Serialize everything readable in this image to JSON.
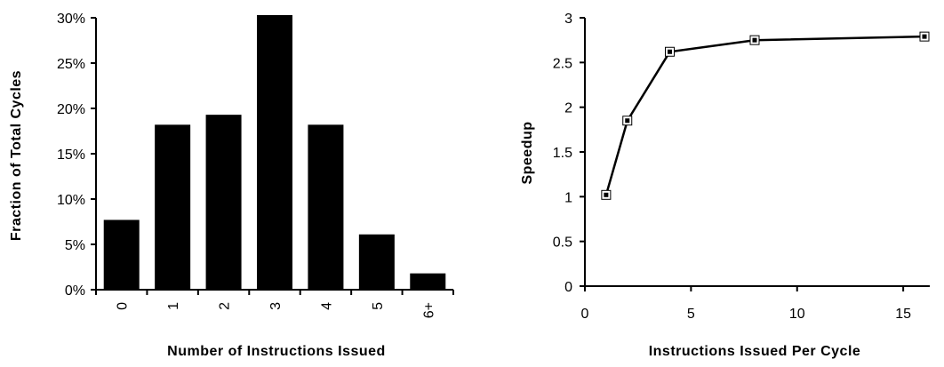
{
  "chart_data": [
    {
      "type": "bar",
      "xlabel": "Number of Instructions Issued",
      "ylabel": "Fraction of Total Cycles",
      "categories": [
        "0",
        "1",
        "2",
        "3",
        "4",
        "5",
        "6+"
      ],
      "values": [
        7.7,
        18.2,
        19.3,
        30.3,
        18.2,
        6.1,
        1.8
      ],
      "ylim": [
        0,
        30
      ],
      "yticks": [
        0,
        5,
        10,
        15,
        20,
        25,
        30
      ],
      "ytick_labels": [
        "0%",
        "5%",
        "10%",
        "15%",
        "20%",
        "25%",
        "30%"
      ],
      "bar_color": "#000000",
      "grid": false
    },
    {
      "type": "line",
      "xlabel": "Instructions Issued Per Cycle",
      "ylabel": "Speedup",
      "x": [
        1,
        2,
        4,
        8,
        16
      ],
      "y": [
        1.02,
        1.85,
        2.62,
        2.75,
        2.79
      ],
      "xlim": [
        0,
        16
      ],
      "ylim": [
        0,
        3
      ],
      "xticks": [
        0,
        5,
        10,
        15
      ],
      "xtick_labels": [
        "0",
        "5",
        "10",
        "15"
      ],
      "yticks": [
        0,
        0.5,
        1,
        1.5,
        2,
        2.5,
        3
      ],
      "ytick_labels": [
        "0",
        "0.5",
        "1",
        "1.5",
        "2",
        "2.5",
        "3"
      ],
      "marker": "square",
      "line_color": "#000000",
      "grid": false
    }
  ]
}
